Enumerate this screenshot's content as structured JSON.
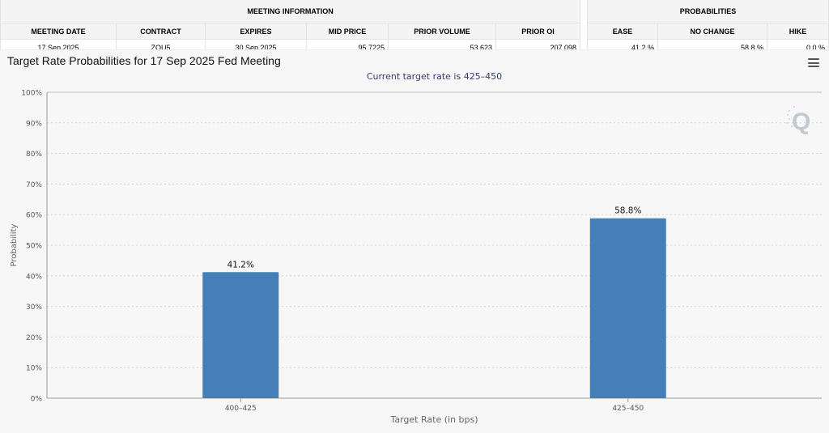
{
  "meeting_info": {
    "header": "MEETING INFORMATION",
    "columns": [
      "MEETING DATE",
      "CONTRACT",
      "EXPIRES",
      "MID PRICE",
      "PRIOR VOLUME",
      "PRIOR OI"
    ],
    "values": [
      "17 Sep 2025",
      "ZQU5",
      "30 Sep 2025",
      "95.7225",
      "53,623",
      "207,098"
    ]
  },
  "probabilities": {
    "header": "PROBABILITIES",
    "columns": [
      "EASE",
      "NO CHANGE",
      "HIKE"
    ],
    "values": [
      "41.2 %",
      "58.8 %",
      "0.0 %"
    ]
  },
  "chart_title": "Target Rate Probabilities for 17 Sep 2025 Fed Meeting",
  "icons": {
    "menu": "hamburger-menu-icon",
    "logo": "q-logo-icon"
  },
  "colors": {
    "bar": "#4480b7",
    "panel_bg": "#f7f7f7"
  },
  "chart_data": {
    "type": "bar",
    "title": "Target Rate Probabilities for 17 Sep 2025 Fed Meeting",
    "subtitle": "Current target rate is 425–450",
    "categories": [
      "400–425",
      "425–450"
    ],
    "values": [
      41.2,
      58.8
    ],
    "data_labels": [
      "41.2%",
      "58.8%"
    ],
    "xlabel": "Target Rate (in bps)",
    "ylabel": "Probability",
    "ylim": [
      0,
      100
    ],
    "yticks": [
      "0%",
      "10%",
      "20%",
      "30%",
      "40%",
      "50%",
      "60%",
      "70%",
      "80%",
      "90%",
      "100%"
    ],
    "grid": true
  }
}
